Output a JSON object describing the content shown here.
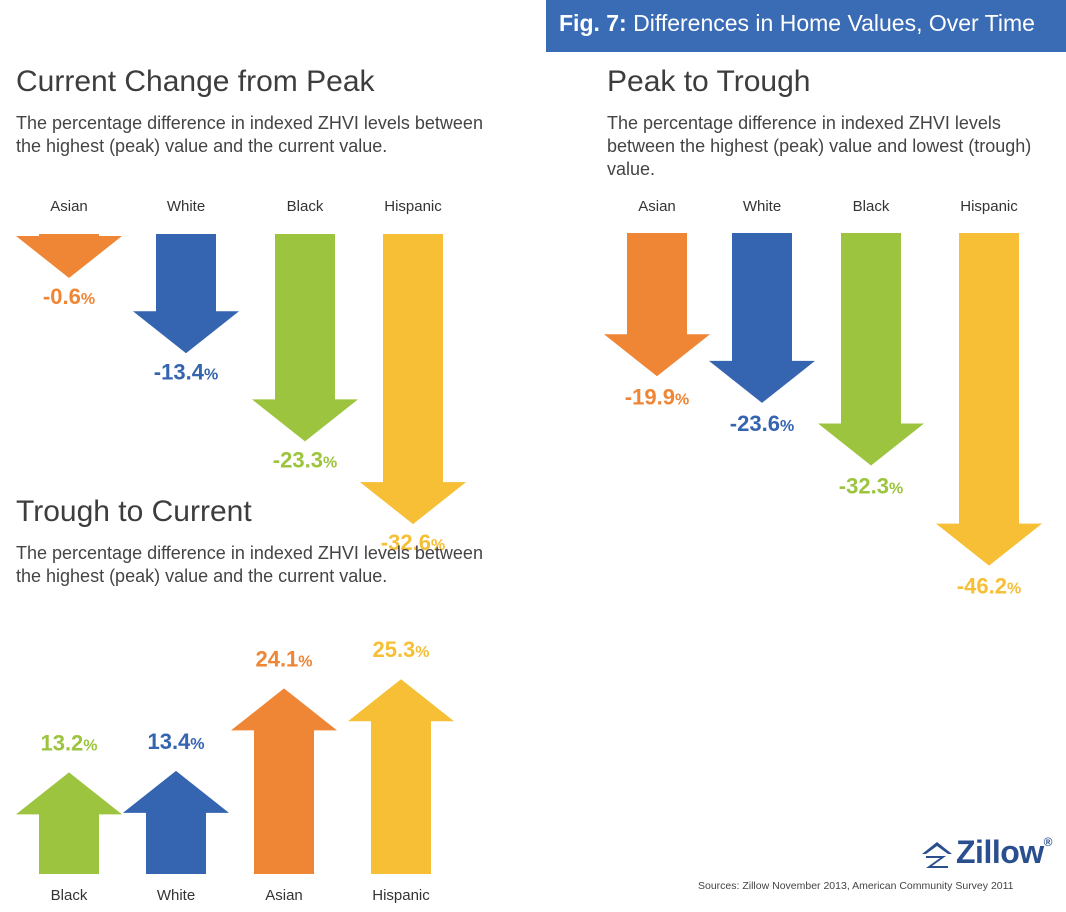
{
  "figure": {
    "label": "Fig. 7:",
    "title": "Differences in Home Values, Over Time"
  },
  "panels": {
    "current_from_peak": {
      "title": "Current Change from Peak",
      "description": "The percentage difference in indexed ZHVI levels between the highest (peak) value and the current value."
    },
    "peak_to_trough": {
      "title": "Peak to Trough",
      "description": "The percentage difference in indexed ZHVI levels between the highest (peak) value and lowest (trough) value."
    },
    "trough_to_current": {
      "title": "Trough to Current",
      "description": "The percentage difference in indexed ZHVI levels between the highest (peak) value and the current value."
    }
  },
  "colors": {
    "Asian": "#ef8636",
    "White": "#3565b0",
    "Black": "#9cc43f",
    "Hispanic": "#f6bf36"
  },
  "chart_data": [
    {
      "id": "current_from_peak",
      "type": "bar",
      "title": "Current Change from Peak",
      "categories": [
        "Asian",
        "White",
        "Black",
        "Hispanic"
      ],
      "values": [
        -0.6,
        -13.4,
        -23.3,
        -32.6
      ],
      "unit": "%"
    },
    {
      "id": "peak_to_trough",
      "type": "bar",
      "title": "Peak to Trough",
      "categories": [
        "Asian",
        "White",
        "Black",
        "Hispanic"
      ],
      "values": [
        -19.9,
        -23.6,
        -32.3,
        -46.2
      ],
      "unit": "%"
    },
    {
      "id": "trough_to_current",
      "type": "bar",
      "title": "Trough to Current",
      "categories": [
        "Black",
        "White",
        "Asian",
        "Hispanic"
      ],
      "values": [
        13.2,
        13.4,
        24.1,
        25.3
      ],
      "unit": "%"
    }
  ],
  "logo": {
    "text": "Zillow",
    "mark": "®"
  },
  "source": "Sources: Zillow November 2013, American Community Survey 2011"
}
